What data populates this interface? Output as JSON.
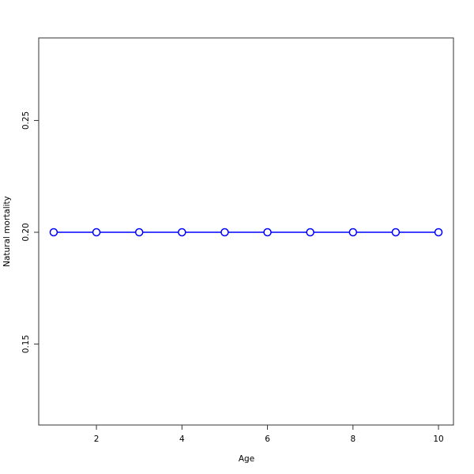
{
  "chart_data": {
    "type": "line",
    "title": "",
    "xlabel": "Age",
    "ylabel": "Natural mortality",
    "x": [
      1,
      2,
      3,
      4,
      5,
      6,
      7,
      8,
      9,
      10
    ],
    "series": [
      {
        "values": [
          0.2,
          0.2,
          0.2,
          0.2,
          0.2,
          0.2,
          0.2,
          0.2,
          0.2,
          0.2
        ],
        "color": "#0000ff",
        "marker": "open-circle"
      }
    ],
    "xlim": [
      0.65,
      10.35
    ],
    "ylim": [
      0.1138,
      0.2869
    ],
    "xticks": [
      2,
      4,
      6,
      8,
      10
    ],
    "xtick_labels": [
      "2",
      "4",
      "6",
      "8",
      "10"
    ],
    "yticks": [
      0.15,
      0.2,
      0.25
    ],
    "ytick_labels": [
      "0.15",
      "0.20",
      "0.25"
    ],
    "grid": false,
    "legend": "none"
  }
}
